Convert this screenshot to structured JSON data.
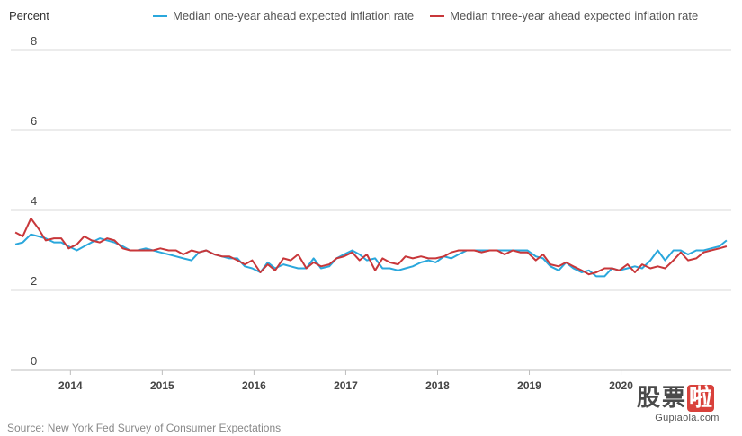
{
  "chart_data": {
    "type": "line",
    "ylabel": "Percent",
    "ylim": [
      0,
      8
    ],
    "yticks": [
      0,
      2,
      4,
      6,
      8
    ],
    "xlim": [
      2013.35,
      2021.2
    ],
    "xticks": [
      "2014",
      "2015",
      "2016",
      "2017",
      "2018",
      "2019",
      "2020"
    ],
    "grid": "horizontal",
    "legend_position": "top",
    "series": [
      {
        "name": "Median one-year ahead expected inflation rate",
        "color": "#2aa7dc",
        "points": [
          [
            2013.4,
            3.15
          ],
          [
            2013.48,
            3.2
          ],
          [
            2013.57,
            3.4
          ],
          [
            2013.65,
            3.35
          ],
          [
            2013.73,
            3.3
          ],
          [
            2013.82,
            3.2
          ],
          [
            2013.9,
            3.2
          ],
          [
            2013.98,
            3.1
          ],
          [
            2014.07,
            3.0
          ],
          [
            2014.15,
            3.1
          ],
          [
            2014.23,
            3.2
          ],
          [
            2014.32,
            3.3
          ],
          [
            2014.4,
            3.25
          ],
          [
            2014.48,
            3.2
          ],
          [
            2014.57,
            3.1
          ],
          [
            2014.65,
            3.0
          ],
          [
            2014.73,
            3.0
          ],
          [
            2014.82,
            3.05
          ],
          [
            2014.9,
            3.0
          ],
          [
            2014.98,
            2.95
          ],
          [
            2015.07,
            2.9
          ],
          [
            2015.15,
            2.85
          ],
          [
            2015.23,
            2.8
          ],
          [
            2015.32,
            2.75
          ],
          [
            2015.4,
            2.95
          ],
          [
            2015.48,
            3.0
          ],
          [
            2015.57,
            2.9
          ],
          [
            2015.65,
            2.85
          ],
          [
            2015.73,
            2.8
          ],
          [
            2015.82,
            2.8
          ],
          [
            2015.9,
            2.6
          ],
          [
            2015.98,
            2.55
          ],
          [
            2016.07,
            2.45
          ],
          [
            2016.15,
            2.7
          ],
          [
            2016.23,
            2.55
          ],
          [
            2016.32,
            2.65
          ],
          [
            2016.4,
            2.6
          ],
          [
            2016.48,
            2.55
          ],
          [
            2016.57,
            2.55
          ],
          [
            2016.65,
            2.8
          ],
          [
            2016.73,
            2.55
          ],
          [
            2016.82,
            2.6
          ],
          [
            2016.9,
            2.8
          ],
          [
            2016.98,
            2.9
          ],
          [
            2017.07,
            3.0
          ],
          [
            2017.15,
            2.9
          ],
          [
            2017.23,
            2.75
          ],
          [
            2017.32,
            2.8
          ],
          [
            2017.4,
            2.55
          ],
          [
            2017.48,
            2.55
          ],
          [
            2017.57,
            2.5
          ],
          [
            2017.65,
            2.55
          ],
          [
            2017.73,
            2.6
          ],
          [
            2017.82,
            2.7
          ],
          [
            2017.9,
            2.75
          ],
          [
            2017.98,
            2.7
          ],
          [
            2018.07,
            2.85
          ],
          [
            2018.15,
            2.8
          ],
          [
            2018.23,
            2.9
          ],
          [
            2018.32,
            3.0
          ],
          [
            2018.4,
            3.0
          ],
          [
            2018.48,
            3.0
          ],
          [
            2018.57,
            3.0
          ],
          [
            2018.65,
            3.0
          ],
          [
            2018.73,
            3.0
          ],
          [
            2018.82,
            3.0
          ],
          [
            2018.9,
            3.0
          ],
          [
            2018.98,
            3.0
          ],
          [
            2019.07,
            2.85
          ],
          [
            2019.15,
            2.8
          ],
          [
            2019.23,
            2.6
          ],
          [
            2019.32,
            2.5
          ],
          [
            2019.4,
            2.7
          ],
          [
            2019.48,
            2.55
          ],
          [
            2019.57,
            2.45
          ],
          [
            2019.65,
            2.5
          ],
          [
            2019.73,
            2.35
          ],
          [
            2019.82,
            2.35
          ],
          [
            2019.9,
            2.55
          ],
          [
            2019.98,
            2.5
          ],
          [
            2020.07,
            2.55
          ],
          [
            2020.15,
            2.6
          ],
          [
            2020.23,
            2.55
          ],
          [
            2020.32,
            2.75
          ],
          [
            2020.4,
            3.0
          ],
          [
            2020.48,
            2.75
          ],
          [
            2020.57,
            3.0
          ],
          [
            2020.65,
            3.0
          ],
          [
            2020.73,
            2.9
          ],
          [
            2020.82,
            3.0
          ],
          [
            2020.9,
            3.0
          ],
          [
            2020.98,
            3.05
          ],
          [
            2021.07,
            3.1
          ],
          [
            2021.15,
            3.25
          ]
        ]
      },
      {
        "name": "Median three-year ahead expected inflation rate",
        "color": "#c8373a",
        "points": [
          [
            2013.4,
            3.45
          ],
          [
            2013.48,
            3.35
          ],
          [
            2013.57,
            3.8
          ],
          [
            2013.65,
            3.55
          ],
          [
            2013.73,
            3.25
          ],
          [
            2013.82,
            3.3
          ],
          [
            2013.9,
            3.3
          ],
          [
            2013.98,
            3.05
          ],
          [
            2014.07,
            3.15
          ],
          [
            2014.15,
            3.35
          ],
          [
            2014.23,
            3.25
          ],
          [
            2014.32,
            3.2
          ],
          [
            2014.4,
            3.3
          ],
          [
            2014.48,
            3.25
          ],
          [
            2014.57,
            3.05
          ],
          [
            2014.65,
            3.0
          ],
          [
            2014.73,
            3.0
          ],
          [
            2014.82,
            3.0
          ],
          [
            2014.9,
            3.0
          ],
          [
            2014.98,
            3.05
          ],
          [
            2015.07,
            3.0
          ],
          [
            2015.15,
            3.0
          ],
          [
            2015.23,
            2.9
          ],
          [
            2015.32,
            3.0
          ],
          [
            2015.4,
            2.95
          ],
          [
            2015.48,
            3.0
          ],
          [
            2015.57,
            2.9
          ],
          [
            2015.65,
            2.85
          ],
          [
            2015.73,
            2.85
          ],
          [
            2015.82,
            2.75
          ],
          [
            2015.9,
            2.65
          ],
          [
            2015.98,
            2.75
          ],
          [
            2016.07,
            2.45
          ],
          [
            2016.15,
            2.65
          ],
          [
            2016.23,
            2.5
          ],
          [
            2016.32,
            2.8
          ],
          [
            2016.4,
            2.75
          ],
          [
            2016.48,
            2.9
          ],
          [
            2016.57,
            2.55
          ],
          [
            2016.65,
            2.7
          ],
          [
            2016.73,
            2.6
          ],
          [
            2016.82,
            2.65
          ],
          [
            2016.9,
            2.8
          ],
          [
            2016.98,
            2.85
          ],
          [
            2017.07,
            2.95
          ],
          [
            2017.15,
            2.75
          ],
          [
            2017.23,
            2.9
          ],
          [
            2017.32,
            2.5
          ],
          [
            2017.4,
            2.8
          ],
          [
            2017.48,
            2.7
          ],
          [
            2017.57,
            2.65
          ],
          [
            2017.65,
            2.85
          ],
          [
            2017.73,
            2.8
          ],
          [
            2017.82,
            2.85
          ],
          [
            2017.9,
            2.8
          ],
          [
            2017.98,
            2.8
          ],
          [
            2018.07,
            2.85
          ],
          [
            2018.15,
            2.95
          ],
          [
            2018.23,
            3.0
          ],
          [
            2018.32,
            3.0
          ],
          [
            2018.4,
            3.0
          ],
          [
            2018.48,
            2.95
          ],
          [
            2018.57,
            3.0
          ],
          [
            2018.65,
            3.0
          ],
          [
            2018.73,
            2.9
          ],
          [
            2018.82,
            3.0
          ],
          [
            2018.9,
            2.95
          ],
          [
            2018.98,
            2.95
          ],
          [
            2019.07,
            2.75
          ],
          [
            2019.15,
            2.9
          ],
          [
            2019.23,
            2.65
          ],
          [
            2019.32,
            2.6
          ],
          [
            2019.4,
            2.7
          ],
          [
            2019.48,
            2.6
          ],
          [
            2019.57,
            2.5
          ],
          [
            2019.65,
            2.4
          ],
          [
            2019.73,
            2.45
          ],
          [
            2019.82,
            2.55
          ],
          [
            2019.9,
            2.55
          ],
          [
            2019.98,
            2.5
          ],
          [
            2020.07,
            2.65
          ],
          [
            2020.15,
            2.45
          ],
          [
            2020.23,
            2.65
          ],
          [
            2020.32,
            2.55
          ],
          [
            2020.4,
            2.6
          ],
          [
            2020.48,
            2.55
          ],
          [
            2020.57,
            2.75
          ],
          [
            2020.65,
            2.95
          ],
          [
            2020.73,
            2.75
          ],
          [
            2020.82,
            2.8
          ],
          [
            2020.9,
            2.95
          ],
          [
            2020.98,
            3.0
          ],
          [
            2021.07,
            3.05
          ],
          [
            2021.15,
            3.1
          ]
        ]
      }
    ]
  },
  "source": "Source: New York Fed Survey of Consumer Expectations",
  "watermark": {
    "chars": [
      "股",
      "票",
      "啦"
    ],
    "url": "Gupiaola.com"
  }
}
